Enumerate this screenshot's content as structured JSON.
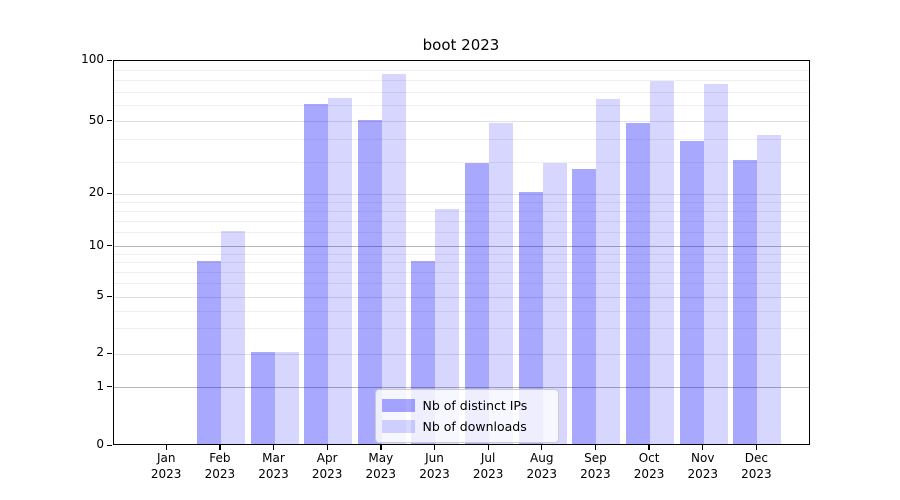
{
  "title": "boot 2023",
  "colors": {
    "distinct_ips_hex": "#a9a9f8",
    "downloads_hex": "#d9d9f9",
    "distinct_ips_rgba": "rgba(0,0,255,0.34)",
    "downloads_rgba": "rgba(0,0,255,0.16)",
    "grid_major": "#b5b5b5",
    "grid_light": "#e2e2e2"
  },
  "chart_data": {
    "type": "bar",
    "title": "boot 2023",
    "categories": [
      "Jan",
      "Feb",
      "Mar",
      "Apr",
      "May",
      "Jun",
      "Jul",
      "Aug",
      "Sep",
      "Oct",
      "Nov",
      "Dec"
    ],
    "year_label": "2023",
    "series": [
      {
        "name": "Nb of distinct IPs",
        "values": [
          0,
          8,
          2,
          60,
          50,
          8,
          29,
          20,
          27,
          48,
          38,
          30
        ]
      },
      {
        "name": "Nb of downloads",
        "values": [
          0,
          12,
          2,
          64,
          84,
          16,
          48,
          29,
          63,
          78,
          75,
          41
        ]
      }
    ],
    "yticks": [
      0,
      1,
      2,
      5,
      10,
      20,
      50,
      100
    ],
    "yscale": "symlog",
    "ylim": [
      0,
      100
    ],
    "grid": true,
    "legend_position": "lower-center"
  }
}
